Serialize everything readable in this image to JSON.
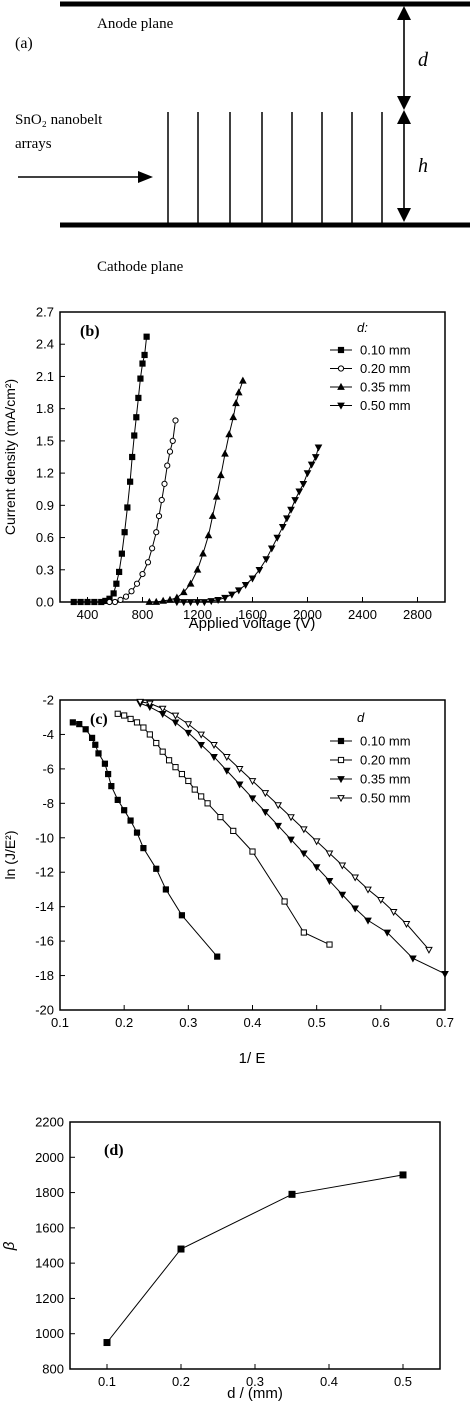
{
  "panel_a": {
    "label": "(a)",
    "anode": "Anode plane",
    "cathode": "Cathode plane",
    "sample_line1": "SnO₂ nanobelt",
    "sample_line2": "arrays",
    "dim_d": "d",
    "dim_h": "h"
  },
  "chart_data": [
    {
      "panel": "(b)",
      "type": "line",
      "xlabel": "Applied voltage (V)",
      "ylabel": "Current density (mA/cm²)",
      "xlim": [
        200,
        3000
      ],
      "ylim": [
        0,
        2.7
      ],
      "xticks": [
        400,
        800,
        1200,
        1600,
        2000,
        2400,
        2800
      ],
      "yticks": [
        0.0,
        0.3,
        0.6,
        0.9,
        1.2,
        1.5,
        1.8,
        2.1,
        2.4,
        2.7
      ],
      "ytick_decimals": 1,
      "legend_title": "d:",
      "legend_position": "top-right",
      "grid": false,
      "series": [
        {
          "name": "0.10 mm",
          "marker": "square",
          "x": [
            300,
            350,
            400,
            450,
            500,
            530,
            560,
            590,
            610,
            630,
            650,
            670,
            690,
            710,
            725,
            740,
            755,
            770,
            785,
            800,
            815,
            830
          ],
          "y": [
            0.0,
            0.0,
            0.0,
            0.0,
            0.0,
            0.01,
            0.03,
            0.08,
            0.17,
            0.28,
            0.45,
            0.65,
            0.88,
            1.12,
            1.35,
            1.55,
            1.72,
            1.9,
            2.08,
            2.22,
            2.3,
            2.47
          ]
        },
        {
          "name": "0.20 mm",
          "marker": "circle",
          "x": [
            560,
            600,
            640,
            680,
            720,
            760,
            800,
            840,
            870,
            900,
            920,
            940,
            960,
            980,
            1000,
            1020,
            1040
          ],
          "y": [
            0.0,
            0.0,
            0.02,
            0.05,
            0.1,
            0.17,
            0.26,
            0.37,
            0.5,
            0.65,
            0.8,
            0.95,
            1.1,
            1.27,
            1.4,
            1.5,
            1.69
          ]
        },
        {
          "name": "0.35 mm",
          "marker": "triangle-up",
          "x": [
            850,
            900,
            950,
            1000,
            1050,
            1100,
            1150,
            1200,
            1240,
            1280,
            1310,
            1340,
            1370,
            1400,
            1430,
            1460,
            1480,
            1500,
            1530
          ],
          "y": [
            0.0,
            0.0,
            0.01,
            0.02,
            0.04,
            0.09,
            0.17,
            0.3,
            0.45,
            0.62,
            0.8,
            0.98,
            1.18,
            1.38,
            1.56,
            1.72,
            1.85,
            1.95,
            2.06
          ]
        },
        {
          "name": "0.50 mm",
          "marker": "triangle-down",
          "x": [
            1050,
            1100,
            1150,
            1200,
            1250,
            1300,
            1350,
            1400,
            1450,
            1500,
            1550,
            1600,
            1650,
            1700,
            1740,
            1780,
            1820,
            1850,
            1880,
            1910,
            1940,
            1970,
            2000,
            2030,
            2060,
            2080
          ],
          "y": [
            0.0,
            0.0,
            0.0,
            0.0,
            0.0,
            0.01,
            0.02,
            0.04,
            0.07,
            0.11,
            0.16,
            0.22,
            0.3,
            0.4,
            0.5,
            0.6,
            0.7,
            0.78,
            0.86,
            0.95,
            1.03,
            1.1,
            1.2,
            1.28,
            1.35,
            1.44
          ]
        }
      ]
    },
    {
      "panel": "(c)",
      "type": "line",
      "xlabel": "1/ E",
      "ylabel": "ln (J/E²)",
      "xlim": [
        0.1,
        0.7
      ],
      "ylim": [
        -20,
        -2
      ],
      "xticks": [
        0.1,
        0.2,
        0.3,
        0.4,
        0.5,
        0.6,
        0.7
      ],
      "yticks": [
        -20,
        -18,
        -16,
        -14,
        -12,
        -10,
        -8,
        -6,
        -4,
        -2
      ],
      "xtick_decimals": 1,
      "ytick_decimals": 0,
      "legend_title": "d",
      "legend_position": "top-right",
      "grid": false,
      "series": [
        {
          "name": "0.10 mm",
          "marker": "square",
          "x": [
            0.12,
            0.13,
            0.14,
            0.15,
            0.155,
            0.16,
            0.17,
            0.175,
            0.18,
            0.19,
            0.2,
            0.21,
            0.22,
            0.23,
            0.25,
            0.265,
            0.29,
            0.345
          ],
          "y": [
            -3.3,
            -3.4,
            -3.7,
            -4.2,
            -4.6,
            -5.1,
            -5.7,
            -6.3,
            -7.0,
            -7.8,
            -8.4,
            -9.0,
            -9.7,
            -10.6,
            -11.8,
            -13.0,
            -14.5,
            -16.9
          ]
        },
        {
          "name": "0.20 mm",
          "marker": "square-open",
          "x": [
            0.19,
            0.2,
            0.21,
            0.22,
            0.23,
            0.24,
            0.25,
            0.26,
            0.27,
            0.28,
            0.29,
            0.3,
            0.31,
            0.32,
            0.33,
            0.35,
            0.37,
            0.4,
            0.45,
            0.48,
            0.52
          ],
          "y": [
            -2.8,
            -2.9,
            -3.1,
            -3.3,
            -3.6,
            -4.0,
            -4.5,
            -5.0,
            -5.5,
            -5.9,
            -6.3,
            -6.7,
            -7.2,
            -7.6,
            -8.0,
            -8.8,
            -9.6,
            -10.8,
            -13.7,
            -15.5,
            -16.2
          ]
        },
        {
          "name": "0.35 mm",
          "marker": "triangle-down",
          "x": [
            0.225,
            0.24,
            0.26,
            0.28,
            0.3,
            0.32,
            0.34,
            0.36,
            0.38,
            0.4,
            0.42,
            0.44,
            0.46,
            0.48,
            0.5,
            0.52,
            0.54,
            0.56,
            0.58,
            0.61,
            0.65,
            0.7
          ],
          "y": [
            -2.2,
            -2.4,
            -2.8,
            -3.3,
            -3.9,
            -4.6,
            -5.3,
            -6.1,
            -6.9,
            -7.7,
            -8.5,
            -9.3,
            -10.1,
            -10.9,
            -11.7,
            -12.5,
            -13.3,
            -14.1,
            -14.8,
            -15.5,
            -17.0,
            -17.9
          ]
        },
        {
          "name": "0.50 mm",
          "marker": "triangle-down-open",
          "x": [
            0.225,
            0.24,
            0.26,
            0.28,
            0.3,
            0.32,
            0.34,
            0.36,
            0.38,
            0.4,
            0.42,
            0.44,
            0.46,
            0.48,
            0.5,
            0.52,
            0.54,
            0.56,
            0.58,
            0.6,
            0.62,
            0.64,
            0.675
          ],
          "y": [
            -2.1,
            -2.2,
            -2.5,
            -2.9,
            -3.4,
            -4.0,
            -4.6,
            -5.3,
            -6.0,
            -6.7,
            -7.4,
            -8.1,
            -8.8,
            -9.5,
            -10.2,
            -10.9,
            -11.6,
            -12.3,
            -13.0,
            -13.6,
            -14.3,
            -15.0,
            -16.5
          ]
        }
      ]
    },
    {
      "panel": "(d)",
      "type": "line",
      "xlabel": "d / (mm)",
      "ylabel": "β",
      "xlim": [
        0.05,
        0.55
      ],
      "ylim": [
        800,
        2200
      ],
      "xticks": [
        0.1,
        0.2,
        0.3,
        0.4,
        0.5
      ],
      "yticks": [
        800,
        1000,
        1200,
        1400,
        1600,
        1800,
        2000,
        2200
      ],
      "xtick_decimals": 1,
      "ytick_decimals": 0,
      "grid": false,
      "series": [
        {
          "marker": "square",
          "x": [
            0.1,
            0.2,
            0.35,
            0.5
          ],
          "y": [
            950,
            1480,
            1790,
            1900
          ]
        }
      ]
    }
  ]
}
